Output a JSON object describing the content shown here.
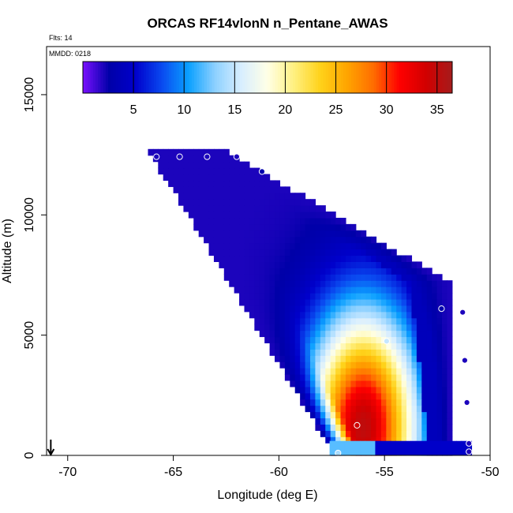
{
  "chart_data": {
    "type": "heatmap",
    "title": "ORCAS RF14vlonN n_Pentane_AWAS",
    "flights_note": "Flts: 14",
    "date_note": "MMDD: 0218",
    "xlabel": "Longitude (deg E)",
    "ylabel": "Altitude (m)",
    "xlim": [
      -71,
      -50
    ],
    "ylim": [
      0,
      17000
    ],
    "x_ticks": [
      -70,
      -65,
      -60,
      -55,
      -50
    ],
    "y_ticks": [
      0,
      5000,
      10000,
      15000
    ],
    "x_tick_labels": [
      "-70",
      "-65",
      "-60",
      "-55",
      "-50"
    ],
    "y_tick_labels": [
      "0",
      "5000",
      "10000",
      "15000"
    ],
    "grid": false,
    "colorbar": {
      "range": [
        0,
        36.5
      ],
      "ticks": [
        5,
        10,
        15,
        20,
        25,
        30,
        35
      ],
      "tick_labels": [
        "5",
        "10",
        "15",
        "20",
        "25",
        "30",
        "35"
      ],
      "colors": [
        "#7A10FF",
        "#0000A8",
        "#0000CC",
        "#0A4AF0",
        "#0AA0FF",
        "#8CD0FF",
        "#D8EEFF",
        "#FFFFE6",
        "#FFF080",
        "#FFD21A",
        "#FFA500",
        "#FF6E00",
        "#FF0000",
        "#D20000",
        "#A51C1C"
      ]
    },
    "field_model": {
      "lower_left_edge": [
        [
          -66.0,
          12400
        ],
        [
          -57.5,
          200
        ]
      ],
      "upper_right_edge": [
        [
          -62.0,
          12400
        ],
        [
          -51.9,
          7200
        ],
        [
          -51.9,
          0
        ]
      ],
      "floor_altitude": 0,
      "peak": {
        "lon": -56.0,
        "alt": 1200,
        "value": 35
      },
      "background_value": 2
    },
    "sample_points": [
      {
        "lon": -65.8,
        "alt": 12420,
        "value": 2
      },
      {
        "lon": -64.7,
        "alt": 12420,
        "value": 2
      },
      {
        "lon": -63.4,
        "alt": 12420,
        "value": 2
      },
      {
        "lon": -62.0,
        "alt": 12420,
        "value": 2
      },
      {
        "lon": -60.8,
        "alt": 11800,
        "value": 3
      },
      {
        "lon": -52.3,
        "alt": 6100,
        "value": 3
      },
      {
        "lon": -51.3,
        "alt": 5950,
        "value": 2
      },
      {
        "lon": -54.9,
        "alt": 4750,
        "value": 15
      },
      {
        "lon": -51.2,
        "alt": 3950,
        "value": 2
      },
      {
        "lon": -51.1,
        "alt": 2200,
        "value": 2
      },
      {
        "lon": -56.3,
        "alt": 1250,
        "value": 34
      },
      {
        "lon": -51.0,
        "alt": 500,
        "value": 2
      },
      {
        "lon": -51.0,
        "alt": 150,
        "value": 2
      },
      {
        "lon": -57.2,
        "alt": 100,
        "value": 14
      }
    ],
    "marker": {
      "type": "down-arrow",
      "lon": -70.8
    }
  }
}
